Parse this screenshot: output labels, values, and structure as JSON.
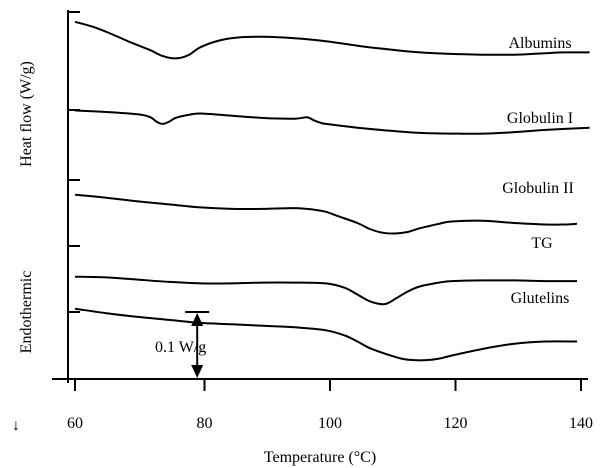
{
  "chart_data": {
    "type": "line",
    "title": "",
    "xlabel": "Temperature (°C)",
    "ylabel": "Heat flow (W/g)",
    "ylabel_secondary": "Endothermic",
    "endotherm_direction_glyph": "↓",
    "xlim": [
      60,
      142
    ],
    "xticks": [
      60,
      80,
      100,
      120,
      140
    ],
    "scale_bar": {
      "label": "0.1 W/g",
      "value": 0.1,
      "x": 68
    },
    "series": [
      {
        "name": "Albumins",
        "x": [
          60,
          63,
          66,
          69,
          72,
          74,
          76,
          78,
          80,
          83,
          86,
          90,
          95,
          100,
          105,
          110,
          115,
          120,
          125,
          130,
          135,
          138,
          142
        ],
        "y": [
          0.525,
          0.518,
          0.508,
          0.497,
          0.487,
          0.479,
          0.476,
          0.48,
          0.491,
          0.5,
          0.504,
          0.505,
          0.503,
          0.499,
          0.493,
          0.488,
          0.484,
          0.482,
          0.481,
          0.481,
          0.483,
          0.484,
          0.484
        ]
      },
      {
        "name": "Globulin I",
        "x": [
          60,
          65,
          70,
          72,
          73,
          74,
          75,
          76,
          78,
          80,
          85,
          90,
          95,
          97,
          98,
          99,
          100,
          105,
          110,
          115,
          120,
          125,
          130,
          135,
          142
        ],
        "y": [
          0.406,
          0.404,
          0.401,
          0.397,
          0.391,
          0.388,
          0.391,
          0.396,
          0.4,
          0.402,
          0.399,
          0.396,
          0.395,
          0.397,
          0.393,
          0.39,
          0.388,
          0.383,
          0.379,
          0.376,
          0.375,
          0.375,
          0.377,
          0.38,
          0.383
        ]
      },
      {
        "name": "Globulin II",
        "x": [
          60,
          65,
          70,
          75,
          80,
          85,
          90,
          95,
          98,
          100,
          102,
          105,
          107,
          109,
          111,
          113,
          115,
          118,
          120,
          125,
          130,
          135,
          138,
          140
        ],
        "y": [
          0.293,
          0.289,
          0.284,
          0.28,
          0.276,
          0.274,
          0.274,
          0.275,
          0.273,
          0.27,
          0.264,
          0.255,
          0.247,
          0.242,
          0.241,
          0.243,
          0.248,
          0.254,
          0.257,
          0.258,
          0.255,
          0.253,
          0.253,
          0.254
        ]
      },
      {
        "name": "TG",
        "x": [
          60,
          65,
          70,
          75,
          80,
          85,
          90,
          95,
          100,
          103,
          105,
          107,
          109,
          110,
          111,
          113,
          115,
          118,
          120,
          125,
          130,
          135,
          140
        ],
        "y": [
          0.183,
          0.182,
          0.179,
          0.176,
          0.174,
          0.174,
          0.175,
          0.175,
          0.174,
          0.168,
          0.159,
          0.15,
          0.146,
          0.148,
          0.153,
          0.163,
          0.17,
          0.175,
          0.177,
          0.178,
          0.178,
          0.177,
          0.177
        ]
      },
      {
        "name": "Glutelins",
        "x": [
          60,
          65,
          70,
          75,
          80,
          85,
          90,
          95,
          100,
          103,
          105,
          107,
          110,
          112,
          114,
          116,
          118,
          120,
          125,
          130,
          135,
          140
        ],
        "y": [
          0.14,
          0.134,
          0.129,
          0.125,
          0.121,
          0.119,
          0.117,
          0.115,
          0.111,
          0.104,
          0.096,
          0.087,
          0.078,
          0.073,
          0.071,
          0.071,
          0.073,
          0.077,
          0.086,
          0.093,
          0.096,
          0.096
        ]
      }
    ],
    "grid": false,
    "legend": "none"
  }
}
